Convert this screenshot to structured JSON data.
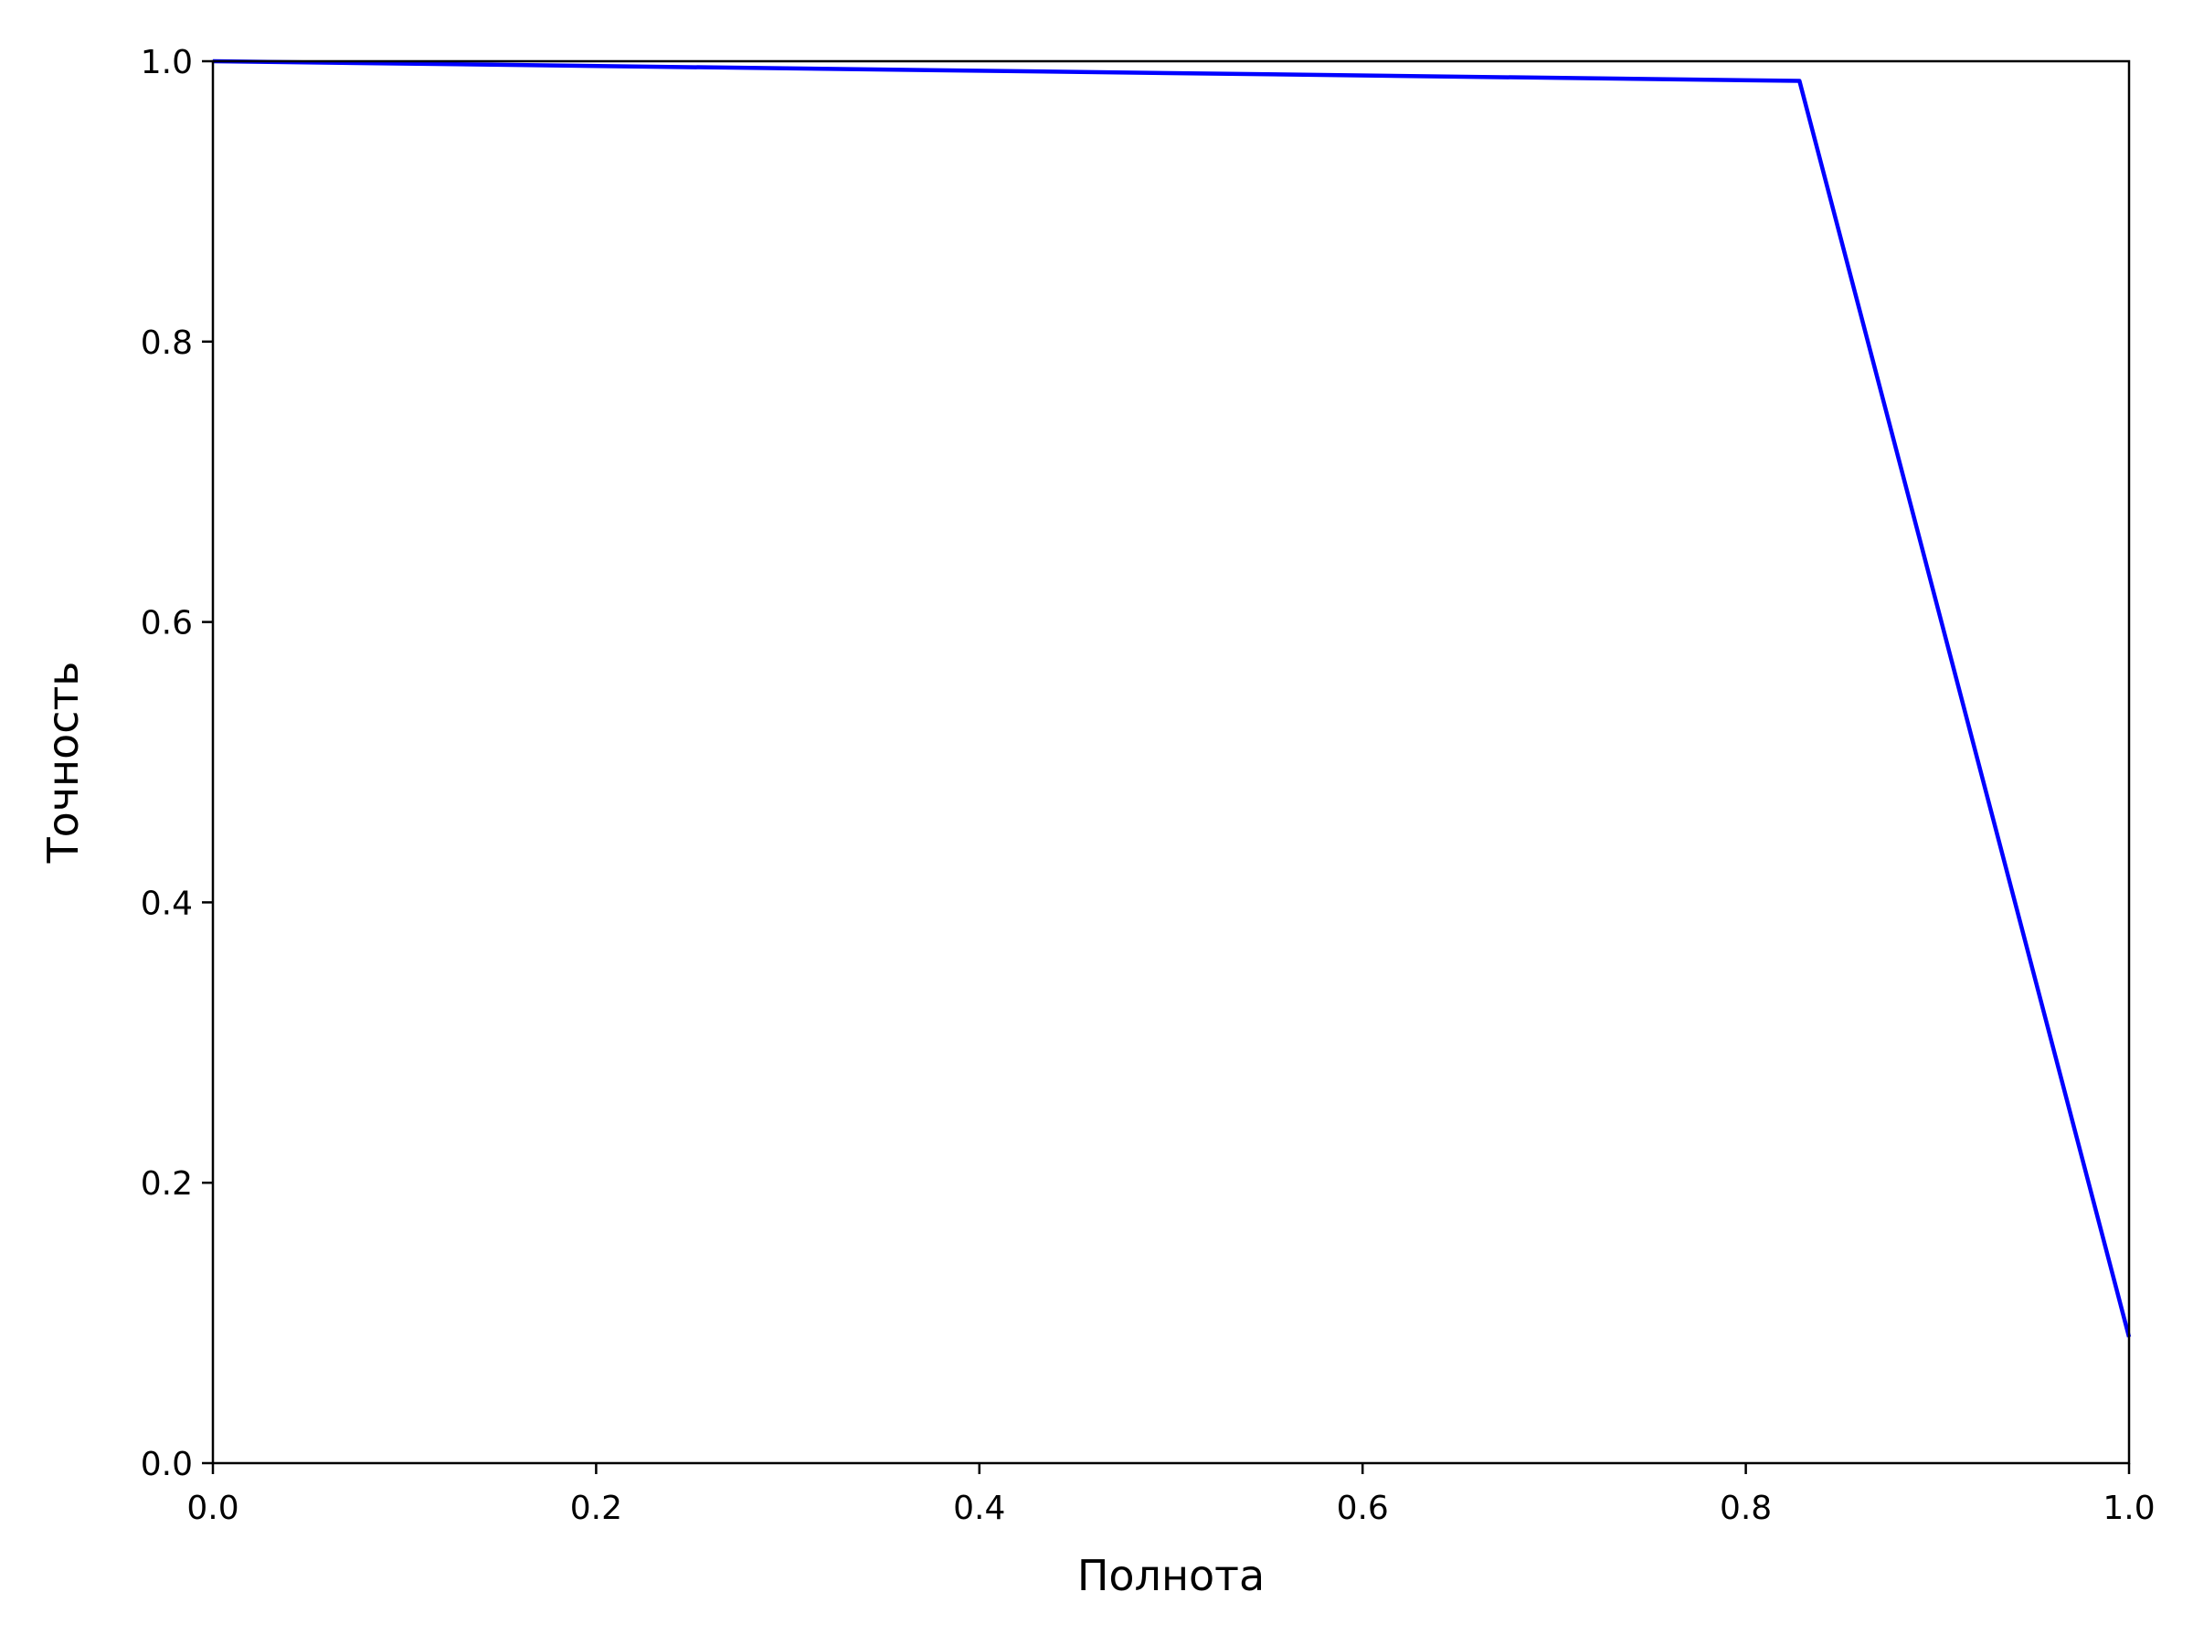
{
  "chart_data": {
    "type": "line",
    "title": "",
    "xlabel": "Полнота",
    "ylabel": "Точность",
    "xlim": [
      0.0,
      1.0
    ],
    "ylim": [
      0.0,
      1.0
    ],
    "xticks": [
      "0.0",
      "0.2",
      "0.4",
      "0.6",
      "0.8",
      "1.0"
    ],
    "yticks": [
      "0.0",
      "0.2",
      "0.4",
      "0.6",
      "0.8",
      "1.0"
    ],
    "grid": false,
    "legend": "none",
    "series": [
      {
        "color": "#0000ff",
        "x": [
          0.0,
          0.828,
          1.0
        ],
        "y": [
          1.0,
          0.986,
          0.09
        ]
      }
    ]
  }
}
